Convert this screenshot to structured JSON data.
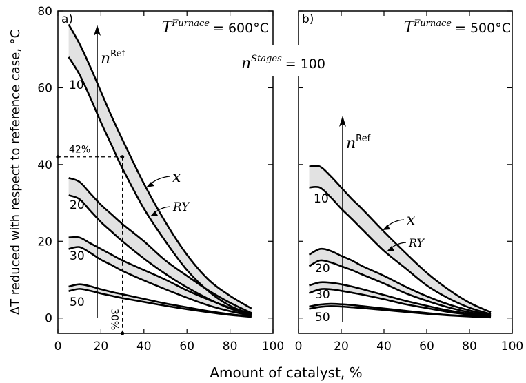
{
  "chart_data": [
    {
      "type": "line",
      "panel_label": "a)",
      "temperature": {
        "prefix": "T",
        "superscript": "Furnace",
        "value": "= 600°C"
      },
      "arrow_label": {
        "base": "n",
        "superscript": "Ref"
      },
      "xlabel": "Amount of catalyst, %",
      "ylabel": "ΔT reduced with respect to reference case, °C",
      "xlim": [
        0,
        100
      ],
      "ylim": [
        -4,
        80
      ],
      "xticks": [
        0,
        20,
        40,
        60,
        80,
        100
      ],
      "yticks": [
        0,
        20,
        40,
        60,
        80
      ],
      "ytick_labels_side": "left",
      "x": [
        5,
        10,
        15,
        20,
        25,
        30,
        40,
        50,
        60,
        70,
        80,
        90
      ],
      "groups": [
        {
          "n": "10",
          "series": [
            {
              "name": "x",
              "values": [
                76.5,
                71.5,
                65.5,
                59,
                52.5,
                46.5,
                35,
                25,
                16.5,
                10,
                5.8,
                2.5
              ]
            },
            {
              "name": "RY",
              "values": [
                68,
                63.5,
                57.5,
                51,
                45,
                39,
                28.5,
                20,
                12.5,
                7,
                3.2,
                1
              ]
            }
          ]
        },
        {
          "n": "20",
          "series": [
            {
              "name": "x",
              "values": [
                36.5,
                35.5,
                32.5,
                29.5,
                27,
                24.5,
                20,
                15,
                11,
                7.2,
                4,
                1.3
              ]
            },
            {
              "name": "RY",
              "values": [
                32,
                31,
                28,
                25,
                22.5,
                20,
                15.5,
                11.5,
                8,
                5,
                2.5,
                0.8
              ]
            }
          ]
        },
        {
          "n": "30",
          "series": [
            {
              "name": "x",
              "values": [
                21,
                21,
                19.5,
                18,
                16.5,
                15,
                12.5,
                10,
                7.2,
                4.8,
                2.7,
                1
              ]
            },
            {
              "name": "RY",
              "values": [
                18,
                18.5,
                17,
                15.2,
                13.8,
                12.3,
                9.8,
                7.5,
                5.3,
                3.3,
                1.8,
                0.6
              ]
            }
          ]
        },
        {
          "n": "50",
          "series": [
            {
              "name": "x",
              "values": [
                8.2,
                8.8,
                8.3,
                7.5,
                6.8,
                6.2,
                5,
                3.8,
                2.8,
                1.8,
                1,
                0.4
              ]
            },
            {
              "name": "RY",
              "values": [
                7,
                7.6,
                7.1,
                6.4,
                5.8,
                5.2,
                4.2,
                3.2,
                2.3,
                1.5,
                0.8,
                0.3
              ]
            }
          ]
        }
      ],
      "annotations": {
        "dashed_guide": {
          "x": 30,
          "y": 42,
          "xlabel": "30%",
          "ylabel": "42%"
        },
        "x_pointer": "x",
        "ry_pointer": "RY"
      }
    },
    {
      "type": "line",
      "panel_label": "b)",
      "temperature": {
        "prefix": "T",
        "superscript": "Furnace",
        "value": "= 500°C"
      },
      "arrow_label": {
        "base": "n",
        "superscript": "Ref"
      },
      "xlim": [
        0,
        100
      ],
      "ylim": [
        -4,
        80
      ],
      "xticks": [
        0,
        20,
        40,
        60,
        80,
        100
      ],
      "yticks": [
        0,
        20,
        40,
        60,
        80
      ],
      "ytick_labels_side": "none",
      "x": [
        5,
        10,
        15,
        20,
        25,
        30,
        40,
        50,
        60,
        70,
        80,
        90
      ],
      "groups": [
        {
          "n": "10",
          "series": [
            {
              "name": "x",
              "values": [
                39.5,
                39.5,
                37,
                34,
                31,
                28.3,
                22.5,
                17,
                11.8,
                7.5,
                4,
                1.5
              ]
            },
            {
              "name": "RY",
              "values": [
                34,
                34,
                31.5,
                28.5,
                25.8,
                23,
                17.5,
                13,
                8.5,
                5.2,
                2.7,
                1
              ]
            }
          ]
        },
        {
          "n": "20",
          "series": [
            {
              "name": "x",
              "values": [
                16.5,
                18,
                17.5,
                16.2,
                15,
                13.5,
                11,
                8.2,
                5.7,
                3.6,
                2,
                0.7
              ]
            },
            {
              "name": "RY",
              "values": [
                13.5,
                15,
                14.5,
                13.5,
                12.5,
                11.3,
                9,
                6.5,
                4.5,
                2.8,
                1.5,
                0.5
              ]
            }
          ]
        },
        {
          "n": "30",
          "series": [
            {
              "name": "x",
              "values": [
                8.5,
                9.3,
                9.2,
                8.8,
                8.2,
                7.5,
                6,
                4.5,
                3.2,
                2,
                1.1,
                0.4
              ]
            },
            {
              "name": "RY",
              "values": [
                6.5,
                7.5,
                7.5,
                7.1,
                6.6,
                6.1,
                4.9,
                3.6,
                2.6,
                1.6,
                0.9,
                0.3
              ]
            }
          ]
        },
        {
          "n": "50",
          "series": [
            {
              "name": "x",
              "values": [
                3,
                3.5,
                3.7,
                3.6,
                3.4,
                3.1,
                2.5,
                1.9,
                1.3,
                0.8,
                0.5,
                0.2
              ]
            },
            {
              "name": "RY",
              "values": [
                2.4,
                2.9,
                3.1,
                3,
                2.8,
                2.6,
                2.1,
                1.6,
                1.1,
                0.7,
                0.4,
                0.15
              ]
            }
          ]
        }
      ],
      "annotations": {
        "x_pointer": "x",
        "ry_pointer": "RY"
      }
    }
  ],
  "shared": {
    "stages": {
      "base": "n",
      "superscript": "Stages",
      "value": "= 100"
    }
  },
  "colors": {
    "band_fill": "#e2e2e2",
    "line": "#000000"
  }
}
